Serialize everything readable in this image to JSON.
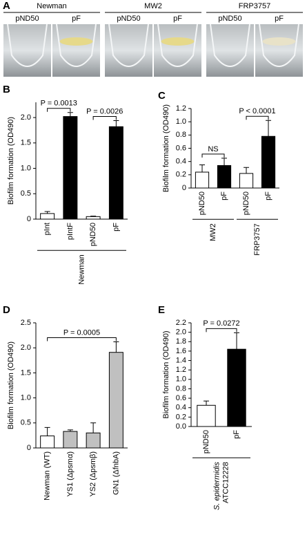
{
  "panel_a": {
    "label": "A",
    "groups": [
      {
        "name": "Newman",
        "lanes": [
          "pND50",
          "pF"
        ]
      },
      {
        "name": "MW2",
        "lanes": [
          "pND50",
          "pF"
        ]
      },
      {
        "name": "FRP3757",
        "lanes": [
          "pND50",
          "pF"
        ]
      }
    ]
  },
  "chart_data": [
    {
      "type": "bar",
      "panel": "B",
      "ylabel": "Biofilm formation (OD490)",
      "categories": [
        "pInt",
        "pIntF",
        "pND50",
        "pF"
      ],
      "values": [
        0.11,
        2.02,
        0.05,
        1.82
      ],
      "errors": [
        0.04,
        0.08,
        0.01,
        0.12
      ],
      "colors": [
        "#ffffff",
        "#000000",
        "#ffffff",
        "#000000"
      ],
      "ylim": [
        0,
        2.3
      ],
      "yticks": [
        0,
        0.5,
        {
          "value": 1,
          "label": "1.0"
        },
        1.5,
        {
          "value": 2,
          "label": "2.0"
        }
      ],
      "groups": [
        {
          "lines": [
            "Newman"
          ],
          "bars": [
            0,
            3
          ]
        }
      ],
      "annotations": [
        {
          "text": "P = 0.0013",
          "bars": [
            0,
            1
          ]
        },
        {
          "text": "P = 0.0026",
          "bars": [
            2,
            3
          ]
        }
      ]
    },
    {
      "type": "bar",
      "panel": "C",
      "ylabel": "Biofilm formation (OD490)",
      "categories": [
        "pND50",
        "pF",
        "pND50",
        "pF"
      ],
      "values": [
        0.24,
        0.34,
        0.22,
        0.78
      ],
      "errors": [
        0.11,
        0.11,
        0.09,
        0.24
      ],
      "colors": [
        "#ffffff",
        "#000000",
        "#ffffff",
        "#000000"
      ],
      "ylim": [
        0,
        1.2
      ],
      "yticks": [
        0,
        0.2,
        0.4,
        0.6,
        0.8,
        {
          "value": 1,
          "label": "1.0"
        },
        1.2
      ],
      "groups": [
        {
          "lines": [
            "MW2"
          ],
          "bars": [
            0,
            1
          ]
        },
        {
          "lines": [
            "FRP3757"
          ],
          "bars": [
            2,
            3
          ]
        }
      ],
      "annotations": [
        {
          "text": "NS",
          "bars": [
            0,
            1
          ]
        },
        {
          "text": "P < 0.0001",
          "bars": [
            2,
            3
          ]
        }
      ]
    },
    {
      "type": "bar",
      "panel": "D",
      "ylabel": "Biofilm formation (OD490)",
      "categories": [
        "Newman (WT)",
        "YS1 (Δpsmα)",
        "YS2 (Δpsmβ)",
        "GN1 (ΔfnbA)"
      ],
      "values": [
        0.24,
        0.33,
        0.3,
        1.91
      ],
      "errors": [
        0.17,
        0.03,
        0.2,
        0.21
      ],
      "colors": [
        "#ffffff",
        "#c0c0c0",
        "#c0c0c0",
        "#c0c0c0"
      ],
      "ylim": [
        0,
        2.5
      ],
      "yticks": [
        0,
        0.5,
        {
          "value": 1,
          "label": "1.0"
        },
        1.5,
        {
          "value": 2,
          "label": "2.0"
        },
        2.5
      ],
      "groups": [],
      "annotations": [
        {
          "text": "P = 0.0005",
          "bars": [
            0,
            3
          ]
        }
      ]
    },
    {
      "type": "bar",
      "panel": "E",
      "ylabel": "Biofilm formation (OD490)",
      "categories": [
        "pND50",
        "pF"
      ],
      "values": [
        0.45,
        1.64
      ],
      "errors": [
        0.09,
        0.35
      ],
      "colors": [
        "#ffffff",
        "#000000"
      ],
      "ylim": [
        0,
        2.2
      ],
      "yticks": [
        {
          "value": 0,
          "label": "0.0"
        },
        0.2,
        0.4,
        0.6,
        0.8,
        {
          "value": 1,
          "label": "1.0"
        },
        1.2,
        1.4,
        1.6,
        1.8,
        {
          "value": 2,
          "label": "2.0"
        },
        2.2
      ],
      "groups": [
        {
          "lines": [
            "S. epidermidis",
            "ATCC12228"
          ],
          "bars": [
            0,
            1
          ]
        }
      ],
      "annotations": [
        {
          "text": "P = 0.0272",
          "bars": [
            0,
            1
          ]
        }
      ]
    }
  ]
}
